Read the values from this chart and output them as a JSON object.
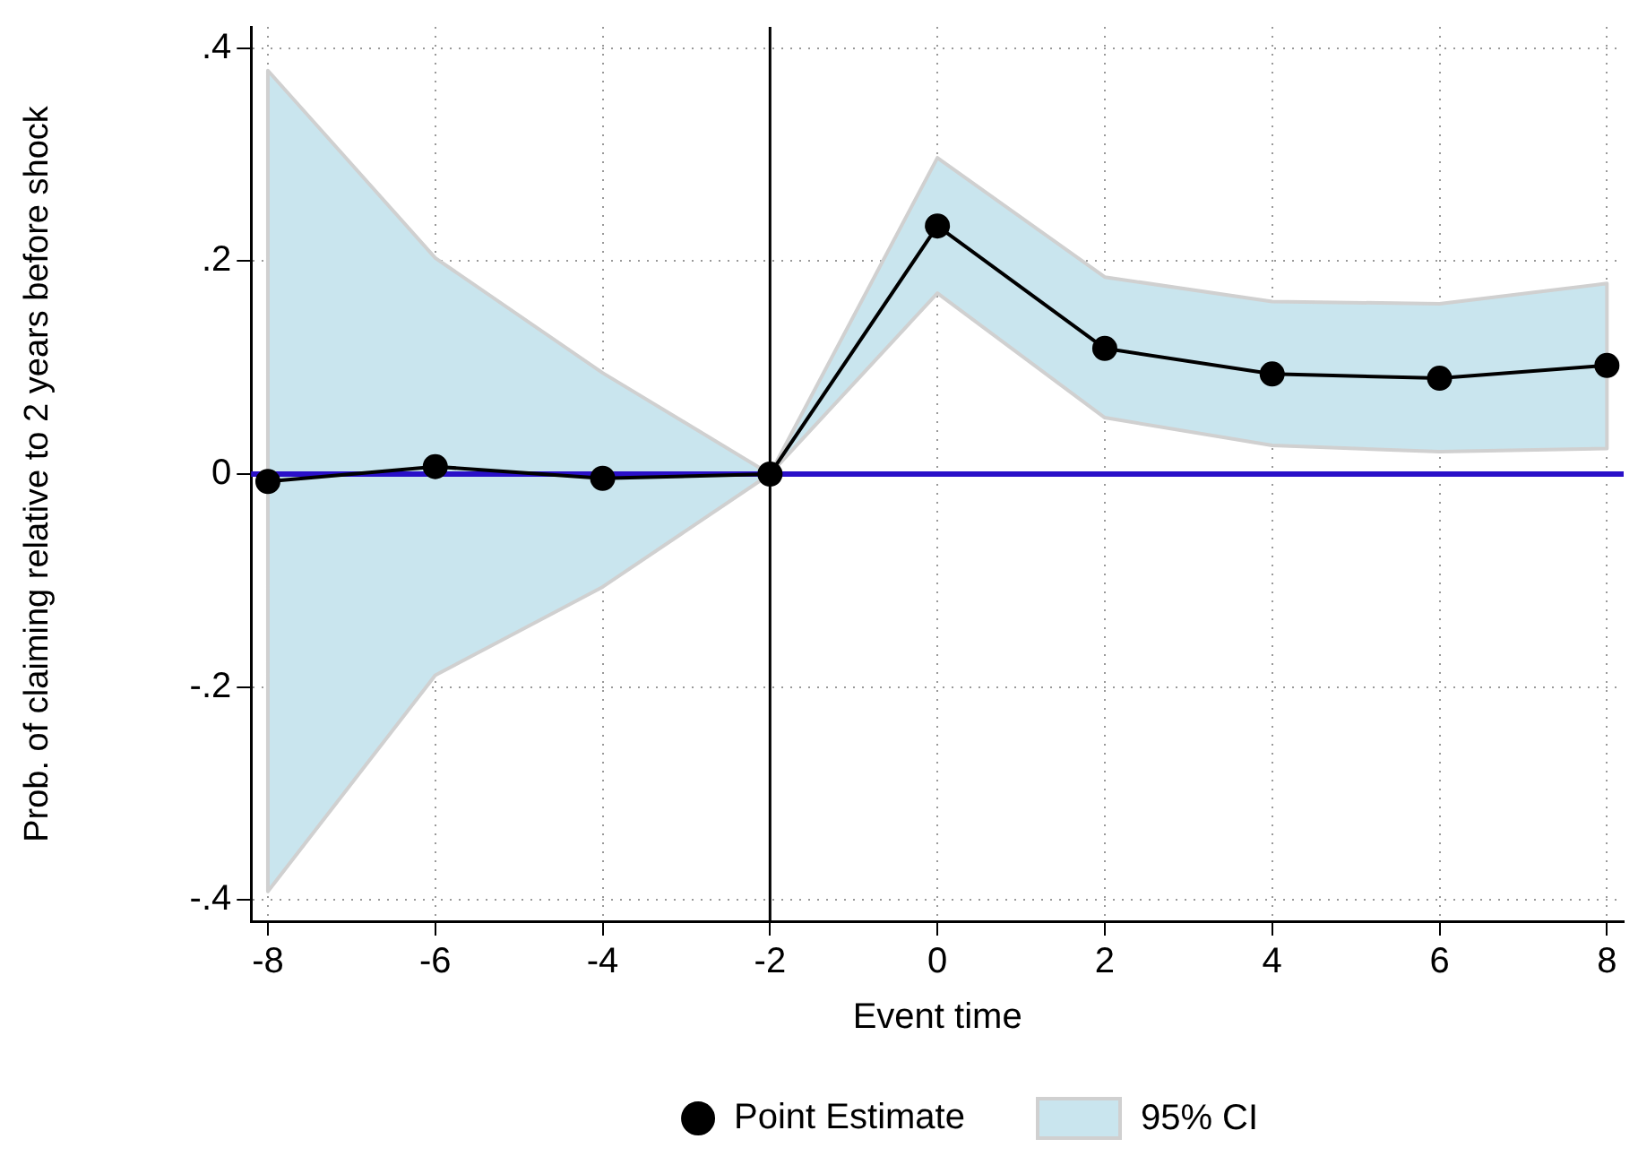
{
  "chart_data": {
    "type": "line",
    "xlabel": "Event time",
    "ylabel": "Prob. of claiming relative to 2 years before shock",
    "x": [
      -8,
      -6,
      -4,
      -2,
      0,
      2,
      4,
      6,
      8
    ],
    "series": [
      {
        "name": "Point Estimate",
        "color": "#000000",
        "values": [
          -0.007,
          0.007,
          -0.004,
          0,
          0.233,
          0.118,
          0.094,
          0.09,
          0.102
        ],
        "lower": [
          -0.392,
          -0.189,
          -0.106,
          0,
          0.17,
          0.053,
          0.027,
          0.021,
          0.024
        ],
        "upper": [
          0.379,
          0.203,
          0.095,
          0,
          0.297,
          0.185,
          0.162,
          0.16,
          0.179
        ]
      }
    ],
    "annotations": [
      "95% CI"
    ],
    "xlim": [
      -8.2,
      8.2
    ],
    "xticks": [
      -8,
      -6,
      -4,
      -2,
      0,
      2,
      4,
      6,
      8
    ],
    "ylim": [
      -0.42,
      0.42
    ],
    "yticks": [
      {
        "value": -0.4,
        "label": "-.4"
      },
      {
        "value": -0.2,
        "label": "-.2"
      },
      0,
      {
        "value": 0.2,
        "label": ".2"
      },
      {
        "value": 0.4,
        "label": ".4"
      }
    ],
    "ref_lines": [
      {
        "axis": "y",
        "value": 0,
        "color": "#2a10c8"
      },
      {
        "axis": "x",
        "value": -2,
        "color": "#000000"
      }
    ],
    "grid": true,
    "legend": "bottom",
    "marker": "circle",
    "line_style": "solid"
  }
}
